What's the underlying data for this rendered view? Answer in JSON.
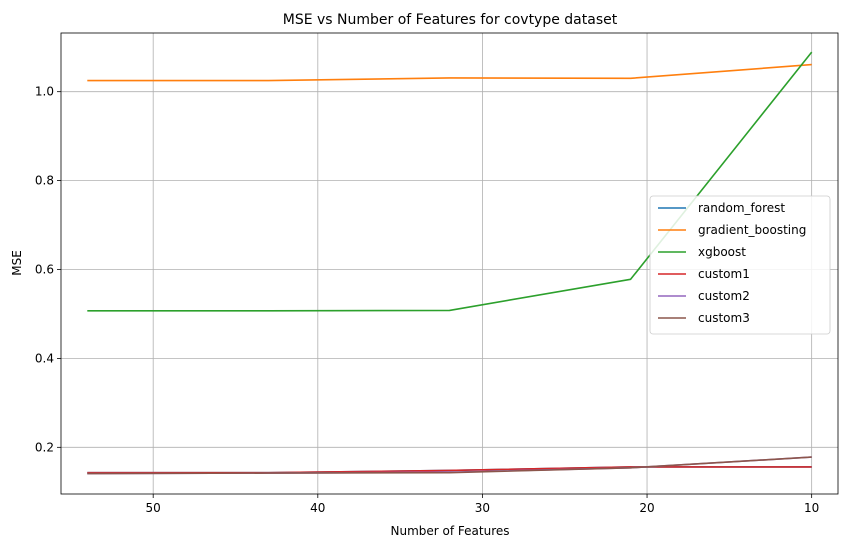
{
  "chart_data": {
    "type": "line",
    "title": "MSE vs Number of Features for covtype dataset",
    "xlabel": "Number of Features",
    "ylabel": "MSE",
    "x_inverted": true,
    "xlim": [
      55.6,
      8.4
    ],
    "ylim": [
      0.095,
      1.132
    ],
    "xticks": [
      50,
      40,
      30,
      20,
      10
    ],
    "yticks": [
      0.2,
      0.4,
      0.6,
      0.8,
      1.0
    ],
    "xtick_labels": [
      "50",
      "40",
      "30",
      "20",
      "10"
    ],
    "ytick_labels": [
      "0.2",
      "0.4",
      "0.6",
      "0.8",
      "1.0"
    ],
    "grid": true,
    "legend_position": "center-right",
    "x": [
      54,
      43,
      32,
      21,
      10
    ],
    "series": [
      {
        "name": "random_forest",
        "color": "#1f77b4",
        "values": [
          0.143,
          0.143,
          0.148,
          0.156,
          0.156
        ]
      },
      {
        "name": "gradient_boosting",
        "color": "#ff7f0e",
        "values": [
          1.025,
          1.025,
          1.031,
          1.03,
          1.061
        ]
      },
      {
        "name": "xgboost",
        "color": "#2ca02c",
        "values": [
          0.507,
          0.507,
          0.508,
          0.578,
          1.089
        ]
      },
      {
        "name": "custom1",
        "color": "#d62728",
        "values": [
          0.143,
          0.143,
          0.148,
          0.156,
          0.156
        ]
      },
      {
        "name": "custom2",
        "color": "#9467bd",
        "values": [
          0.141,
          0.142,
          0.144,
          0.154,
          0.178
        ]
      },
      {
        "name": "custom3",
        "color": "#8c564b",
        "values": [
          0.141,
          0.142,
          0.143,
          0.154,
          0.178
        ]
      }
    ]
  }
}
